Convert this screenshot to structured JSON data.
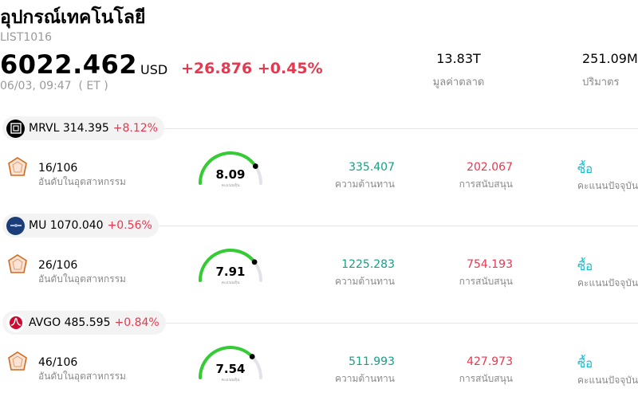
{
  "header": {
    "title": "อุปกรณ์เทคโนโลยี",
    "code": "LIST1016",
    "price": "6022.462",
    "currency": "USD",
    "change": "+26.876 +0.45%",
    "time": "06/03, 09:47  ( ET )",
    "market_cap": {
      "value": "13.83T",
      "label": "มูลค่าตลาด"
    },
    "volume": {
      "value": "251.09M",
      "label": "ปริมาตร"
    }
  },
  "colors": {
    "up": "#e8384f",
    "resistance": "#16a085",
    "rating": "#17b8c6",
    "gauge_green": "#33cc33"
  },
  "stocks": [
    {
      "symbol_price": "MRVL 314.395",
      "change": "+8.12%",
      "logo": "mrvl-logo-icon",
      "rank": "16/106",
      "rank_label": "อันดับในอุตสาหกรรม",
      "score": "8.09",
      "score_fraction": 0.809,
      "score_label": "คะแนนหุ้น",
      "resistance": "335.407",
      "resistance_label": "ความต้านทาน",
      "support": "202.067",
      "support_label": "การสนับสนุน",
      "rating": "ซื้อ",
      "rating_label": "คะแนนปัจจุบัน"
    },
    {
      "symbol_price": "MU 1070.040",
      "change": "+0.56%",
      "logo": "mu-logo-icon",
      "rank": "26/106",
      "rank_label": "อันดับในอุตสาหกรรม",
      "score": "7.91",
      "score_fraction": 0.791,
      "score_label": "คะแนนหุ้น",
      "resistance": "1225.283",
      "resistance_label": "ความต้านทาน",
      "support": "754.193",
      "support_label": "การสนับสนุน",
      "rating": "ซื้อ",
      "rating_label": "คะแนนปัจจุบัน"
    },
    {
      "symbol_price": "AVGO 485.595",
      "change": "+0.84%",
      "logo": "avgo-logo-icon",
      "rank": "46/106",
      "rank_label": "อันดับในอุตสาหกรรม",
      "score": "7.54",
      "score_fraction": 0.754,
      "score_label": "คะแนนหุ้น",
      "resistance": "511.993",
      "resistance_label": "ความต้านทาน",
      "support": "427.973",
      "support_label": "การสนับสนุน",
      "rating": "ซื้อ",
      "rating_label": "คะแนนปัจจุบัน"
    }
  ]
}
